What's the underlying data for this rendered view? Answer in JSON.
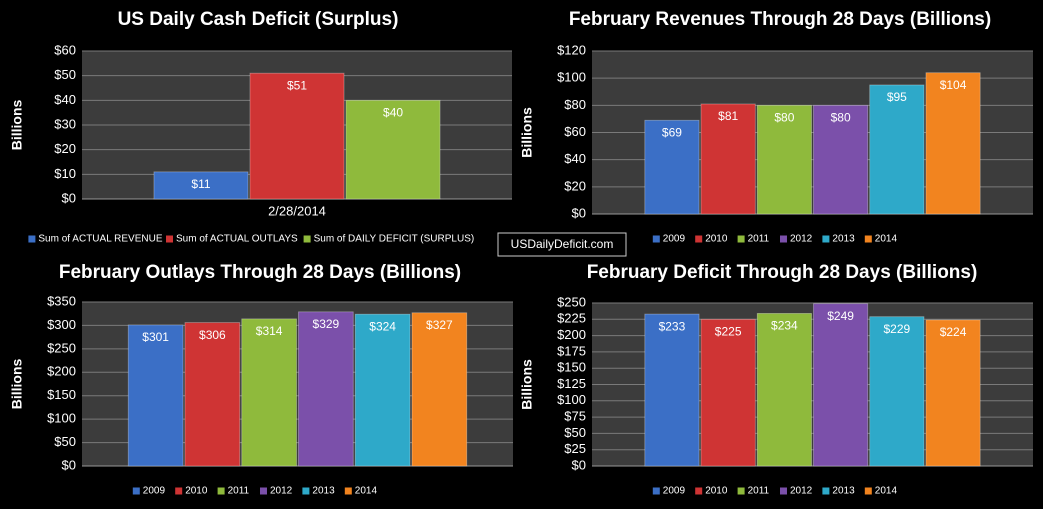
{
  "watermark": "USDailyDeficit.com",
  "chart_data": [
    {
      "type": "bar",
      "title": "US Daily Cash Deficit (Surplus)",
      "ylabel": "Billions",
      "categories": [
        "2/28/2014"
      ],
      "series": [
        {
          "name": "Sum of ACTUAL REVENUE",
          "color": "#3b6fc6",
          "values": [
            11
          ],
          "value_labels": [
            "$11"
          ]
        },
        {
          "name": "Sum of ACTUAL OUTLAYS",
          "color": "#cf3434",
          "values": [
            51
          ],
          "value_labels": [
            "$51"
          ]
        },
        {
          "name": "Sum of DAILY DEFICIT (SURPLUS)",
          "color": "#8fba3c",
          "values": [
            40
          ],
          "value_labels": [
            "$40"
          ]
        }
      ],
      "ylim": [
        0,
        60
      ],
      "yticks": [
        {
          "value": 0,
          "label": "$0"
        },
        {
          "value": 10,
          "label": "$10"
        },
        {
          "value": 20,
          "label": "$20"
        },
        {
          "value": 30,
          "label": "$30"
        },
        {
          "value": 40,
          "label": "$40"
        },
        {
          "value": 50,
          "label": "$50"
        },
        {
          "value": 60,
          "label": "$60"
        }
      ],
      "grid": true,
      "legend": "bottom"
    },
    {
      "type": "bar",
      "title": "February Revenues Through 28 Days (Billions)",
      "ylabel": "Billions",
      "categories": [
        null
      ],
      "series": [
        {
          "name": "2009",
          "color": "#3b6fc6",
          "values": [
            69
          ],
          "value_labels": [
            "$69"
          ]
        },
        {
          "name": "2010",
          "color": "#cf3434",
          "values": [
            81
          ],
          "value_labels": [
            "$81"
          ]
        },
        {
          "name": "2011",
          "color": "#8fba3c",
          "values": [
            80
          ],
          "value_labels": [
            "$80"
          ]
        },
        {
          "name": "2012",
          "color": "#7b50aa",
          "values": [
            80
          ],
          "value_labels": [
            "$80"
          ]
        },
        {
          "name": "2013",
          "color": "#2ea9c9",
          "values": [
            95
          ],
          "value_labels": [
            "$95"
          ]
        },
        {
          "name": "2014",
          "color": "#f2841f",
          "values": [
            104
          ],
          "value_labels": [
            "$104"
          ]
        }
      ],
      "ylim": [
        0,
        120
      ],
      "yticks": [
        {
          "value": 0,
          "label": "$0"
        },
        {
          "value": 20,
          "label": "$20"
        },
        {
          "value": 40,
          "label": "$40"
        },
        {
          "value": 60,
          "label": "$60"
        },
        {
          "value": 80,
          "label": "$80"
        },
        {
          "value": 100,
          "label": "$100"
        },
        {
          "value": 120,
          "label": "$120"
        }
      ],
      "grid": true,
      "legend": "bottom"
    },
    {
      "type": "bar",
      "title": "February Outlays Through 28 Days (Billions)",
      "ylabel": "Billions",
      "categories": [
        null
      ],
      "series": [
        {
          "name": "2009",
          "color": "#3b6fc6",
          "values": [
            301
          ],
          "value_labels": [
            "$301"
          ]
        },
        {
          "name": "2010",
          "color": "#cf3434",
          "values": [
            306
          ],
          "value_labels": [
            "$306"
          ]
        },
        {
          "name": "2011",
          "color": "#8fba3c",
          "values": [
            314
          ],
          "value_labels": [
            "$314"
          ]
        },
        {
          "name": "2012",
          "color": "#7b50aa",
          "values": [
            329
          ],
          "value_labels": [
            "$329"
          ]
        },
        {
          "name": "2013",
          "color": "#2ea9c9",
          "values": [
            324
          ],
          "value_labels": [
            "$324"
          ]
        },
        {
          "name": "2014",
          "color": "#f2841f",
          "values": [
            327
          ],
          "value_labels": [
            "$327"
          ]
        }
      ],
      "ylim": [
        0,
        350
      ],
      "yticks": [
        {
          "value": 0,
          "label": "$0"
        },
        {
          "value": 50,
          "label": "$50"
        },
        {
          "value": 100,
          "label": "$100"
        },
        {
          "value": 150,
          "label": "$150"
        },
        {
          "value": 200,
          "label": "$200"
        },
        {
          "value": 250,
          "label": "$250"
        },
        {
          "value": 300,
          "label": "$300"
        },
        {
          "value": 350,
          "label": "$350"
        }
      ],
      "grid": true,
      "legend": "bottom"
    },
    {
      "type": "bar",
      "title": "February Deficit Through 28 Days (Billions)",
      "ylabel": "Billions",
      "categories": [
        null
      ],
      "series": [
        {
          "name": "2009",
          "color": "#3b6fc6",
          "values": [
            233
          ],
          "value_labels": [
            "$233"
          ]
        },
        {
          "name": "2010",
          "color": "#cf3434",
          "values": [
            225
          ],
          "value_labels": [
            "$225"
          ]
        },
        {
          "name": "2011",
          "color": "#8fba3c",
          "values": [
            234
          ],
          "value_labels": [
            "$234"
          ]
        },
        {
          "name": "2012",
          "color": "#7b50aa",
          "values": [
            249
          ],
          "value_labels": [
            "$249"
          ]
        },
        {
          "name": "2013",
          "color": "#2ea9c9",
          "values": [
            229
          ],
          "value_labels": [
            "$229"
          ]
        },
        {
          "name": "2014",
          "color": "#f2841f",
          "values": [
            224
          ],
          "value_labels": [
            "$224"
          ]
        }
      ],
      "ylim": [
        0,
        250
      ],
      "yticks": [
        {
          "value": 0,
          "label": "$0"
        },
        {
          "value": 25,
          "label": "$25"
        },
        {
          "value": 50,
          "label": "$50"
        },
        {
          "value": 75,
          "label": "$75"
        },
        {
          "value": 100,
          "label": "$100"
        },
        {
          "value": 125,
          "label": "$125"
        },
        {
          "value": 150,
          "label": "$150"
        },
        {
          "value": 175,
          "label": "$175"
        },
        {
          "value": 200,
          "label": "$200"
        },
        {
          "value": 225,
          "label": "$225"
        },
        {
          "value": 250,
          "label": "$250"
        }
      ],
      "grid": true,
      "legend": "bottom"
    }
  ]
}
